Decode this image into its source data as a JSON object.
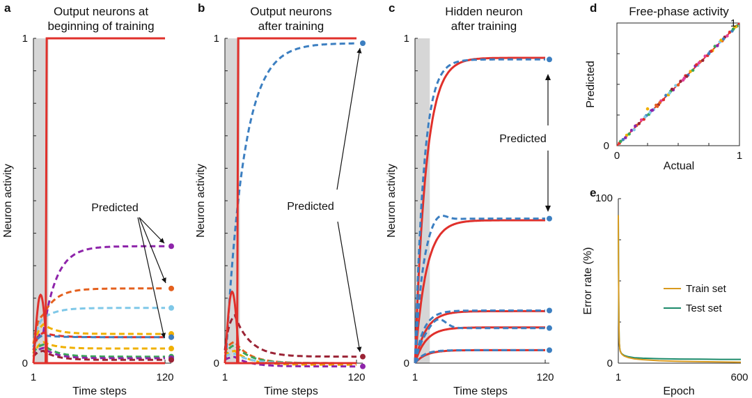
{
  "chart_data": [
    {
      "panel": "a",
      "type": "line",
      "title": "Output neurons at beginning of training",
      "title_lines": [
        "Output neurons at",
        "beginning of training"
      ],
      "xlabel": "Time steps",
      "ylabel": "Neuron activity",
      "xlim": [
        1,
        120
      ],
      "ylim": [
        0,
        1
      ],
      "xtick_labels": [
        "1",
        "120"
      ],
      "ytick_labels": [
        "0",
        "1"
      ],
      "clamp_phase": [
        1,
        12
      ],
      "annotation": "Predicted",
      "target_curves": [
        {
          "shape": "step_up",
          "color": "#e0302b",
          "start": 0,
          "end": 1,
          "switch": 13
        },
        {
          "shape": "pulse",
          "color": "#e0302b",
          "start": 0,
          "end": 0,
          "peak": 0.21,
          "peak_at": 9,
          "switch": 13
        }
      ],
      "series": [
        {
          "color": "#8e24aa",
          "start": 0.05,
          "peak": 0.1,
          "end": 0.36,
          "marker": true
        },
        {
          "color": "#e4601e",
          "start": 0.06,
          "peak": 0.16,
          "end": 0.23,
          "marker": true
        },
        {
          "color": "#7fc8e8",
          "start": 0.04,
          "peak": 0.15,
          "end": 0.17,
          "marker": true
        },
        {
          "color": "#f0b000",
          "start": 0.03,
          "peak": 0.13,
          "end": 0.09,
          "marker": true
        },
        {
          "color": "#e0302b",
          "start": 0.04,
          "peak": 0.1,
          "end": 0.08,
          "marker": true
        },
        {
          "color": "#3c7fc1",
          "start": 0.05,
          "peak": 0.09,
          "end": 0.08,
          "marker": true
        },
        {
          "color": "#f0b000",
          "start": 0.02,
          "peak": 0.07,
          "end": 0.045,
          "marker": true
        },
        {
          "color": "#3aa55b",
          "start": 0.03,
          "peak": 0.06,
          "end": 0.02,
          "marker": true
        },
        {
          "color": "#8e24aa",
          "start": 0.02,
          "peak": 0.05,
          "end": 0.015,
          "marker": true
        },
        {
          "color": "#9b2335",
          "start": 0.02,
          "peak": 0.04,
          "end": 0.01,
          "marker": true
        }
      ]
    },
    {
      "panel": "b",
      "type": "line",
      "title": "Output neurons after training",
      "title_lines": [
        "Output neurons",
        "after training"
      ],
      "xlabel": "Time steps",
      "ylabel": "Neuron activity",
      "xlim": [
        1,
        120
      ],
      "ylim": [
        0,
        1
      ],
      "xtick_labels": [
        "1",
        "120"
      ],
      "ytick_labels": [
        "0",
        "1"
      ],
      "clamp_phase": [
        1,
        12
      ],
      "annotation": "Predicted",
      "target_curves": [
        {
          "shape": "step_up",
          "color": "#e0302b",
          "start": 0,
          "end": 1,
          "switch": 13
        },
        {
          "shape": "pulse",
          "color": "#e0302b",
          "start": 0,
          "end": 0,
          "peak": 0.22,
          "peak_at": 9,
          "switch": 13
        }
      ],
      "series": [
        {
          "color": "#3c7fc1",
          "start": 0.02,
          "peak": 0.02,
          "end": 0.985,
          "marker": true
        },
        {
          "color": "#9b2335",
          "start": 0.04,
          "peak": 0.16,
          "end": 0.02,
          "marker": true
        },
        {
          "color": "#e4601e",
          "start": 0.03,
          "peak": 0.07,
          "end": 0.0,
          "marker": false
        },
        {
          "color": "#3aa55b",
          "start": 0.02,
          "peak": 0.06,
          "end": 0.0,
          "marker": false
        },
        {
          "color": "#f0b000",
          "start": 0.02,
          "peak": 0.04,
          "end": -0.005,
          "marker": false
        },
        {
          "color": "#7fc8e8",
          "start": 0.02,
          "peak": 0.03,
          "end": 0.0,
          "marker": false
        },
        {
          "color": "#8e24aa",
          "start": 0.01,
          "peak": 0.02,
          "end": -0.01,
          "marker": true
        }
      ]
    },
    {
      "panel": "c",
      "type": "line",
      "title": "Hidden neuron after training",
      "title_lines": [
        "Hidden neuron",
        "after training"
      ],
      "xlabel": "Time steps",
      "ylabel": "Neuron activity",
      "xlim": [
        1,
        120
      ],
      "ylim": [
        0,
        1
      ],
      "xtick_labels": [
        "1",
        "120"
      ],
      "ytick_labels": [
        "0",
        "1"
      ],
      "clamp_phase": [
        1,
        12
      ],
      "annotation": "Predicted",
      "pairs": [
        {
          "actual_end": 0.94,
          "predicted_end": 0.935
        },
        {
          "actual_end": 0.44,
          "predicted_end": 0.445,
          "predicted_overshoot": 0.47
        },
        {
          "actual_end": 0.16,
          "predicted_end": 0.162
        },
        {
          "actual_end": 0.11,
          "predicted_end": 0.108,
          "predicted_overshoot": 0.14
        },
        {
          "actual_end": 0.04,
          "predicted_end": 0.04
        }
      ]
    },
    {
      "panel": "d",
      "type": "scatter",
      "title": "Free-phase activity",
      "xlabel": "Actual",
      "ylabel": "Predicted",
      "xlim": [
        0,
        1
      ],
      "ylim": [
        0,
        1
      ],
      "xtick_labels": [
        "0",
        "1"
      ],
      "ytick_labels": [
        "0",
        "1"
      ],
      "point_colors": [
        "#e0302b",
        "#3c7fc1",
        "#f0b000",
        "#3aa55b",
        "#8e24aa",
        "#7fc8e8",
        "#e4601e",
        "#9b2335",
        "#e0409b"
      ],
      "points": [
        [
          0.02,
          0.02
        ],
        [
          0.05,
          0.05
        ],
        [
          0.08,
          0.085
        ],
        [
          0.1,
          0.095
        ],
        [
          0.12,
          0.125
        ],
        [
          0.14,
          0.13
        ],
        [
          0.16,
          0.165
        ],
        [
          0.18,
          0.18
        ],
        [
          0.2,
          0.21
        ],
        [
          0.22,
          0.215
        ],
        [
          0.24,
          0.245
        ],
        [
          0.25,
          0.3
        ],
        [
          0.26,
          0.255
        ],
        [
          0.28,
          0.285
        ],
        [
          0.3,
          0.295
        ],
        [
          0.32,
          0.33
        ],
        [
          0.34,
          0.335
        ],
        [
          0.36,
          0.365
        ],
        [
          0.38,
          0.375
        ],
        [
          0.4,
          0.41
        ],
        [
          0.42,
          0.415
        ],
        [
          0.44,
          0.445
        ],
        [
          0.46,
          0.455
        ],
        [
          0.48,
          0.49
        ],
        [
          0.5,
          0.495
        ],
        [
          0.52,
          0.525
        ],
        [
          0.54,
          0.535
        ],
        [
          0.56,
          0.57
        ],
        [
          0.58,
          0.575
        ],
        [
          0.6,
          0.605
        ],
        [
          0.62,
          0.615
        ],
        [
          0.64,
          0.65
        ],
        [
          0.66,
          0.655
        ],
        [
          0.68,
          0.685
        ],
        [
          0.7,
          0.695
        ],
        [
          0.72,
          0.73
        ],
        [
          0.74,
          0.735
        ],
        [
          0.76,
          0.765
        ],
        [
          0.78,
          0.775
        ],
        [
          0.8,
          0.81
        ],
        [
          0.82,
          0.815
        ],
        [
          0.84,
          0.845
        ],
        [
          0.86,
          0.855
        ],
        [
          0.88,
          0.885
        ],
        [
          0.9,
          0.895
        ],
        [
          0.92,
          0.925
        ],
        [
          0.94,
          0.935
        ],
        [
          0.96,
          0.965
        ],
        [
          0.98,
          0.975
        ],
        [
          0.15,
          0.16
        ],
        [
          0.27,
          0.27
        ],
        [
          0.33,
          0.32
        ],
        [
          0.45,
          0.46
        ],
        [
          0.55,
          0.55
        ],
        [
          0.65,
          0.66
        ],
        [
          0.75,
          0.75
        ],
        [
          0.85,
          0.86
        ],
        [
          0.95,
          0.95
        ],
        [
          0.07,
          0.065
        ],
        [
          0.23,
          0.235
        ],
        [
          0.35,
          0.35
        ],
        [
          0.57,
          0.565
        ],
        [
          0.67,
          0.675
        ],
        [
          0.77,
          0.77
        ],
        [
          0.87,
          0.87
        ],
        [
          0.97,
          0.97
        ],
        [
          0.03,
          0.035
        ],
        [
          0.29,
          0.29
        ],
        [
          0.43,
          0.43
        ]
      ]
    },
    {
      "panel": "e",
      "type": "line",
      "title": "",
      "xlabel": "Epoch",
      "ylabel": "Error rate (%)",
      "xlim": [
        1,
        600
      ],
      "ylim": [
        0,
        100
      ],
      "xtick_labels": [
        "1",
        "600"
      ],
      "ytick_labels": [
        "0",
        "100"
      ],
      "legend_position": "right",
      "series": [
        {
          "name": "Train set",
          "color": "#d89a1e",
          "x": [
            1,
            2,
            3,
            4,
            5,
            6,
            8,
            10,
            15,
            20,
            30,
            50,
            80,
            120,
            200,
            300,
            400,
            500,
            600
          ],
          "y": [
            90,
            60,
            38,
            24,
            16,
            12,
            9,
            7.5,
            6,
            5.2,
            4.3,
            3.4,
            2.6,
            2.1,
            1.5,
            1.1,
            0.9,
            0.7,
            0.6
          ]
        },
        {
          "name": "Test set",
          "color": "#1c8a6a",
          "x": [
            1,
            2,
            3,
            4,
            5,
            6,
            8,
            10,
            15,
            20,
            30,
            50,
            80,
            120,
            200,
            300,
            400,
            500,
            600
          ],
          "y": [
            90,
            60,
            38,
            24,
            16,
            12,
            9,
            7.6,
            6.2,
            5.5,
            4.7,
            3.9,
            3.3,
            3.0,
            2.7,
            2.5,
            2.4,
            2.3,
            2.3
          ]
        }
      ]
    }
  ]
}
